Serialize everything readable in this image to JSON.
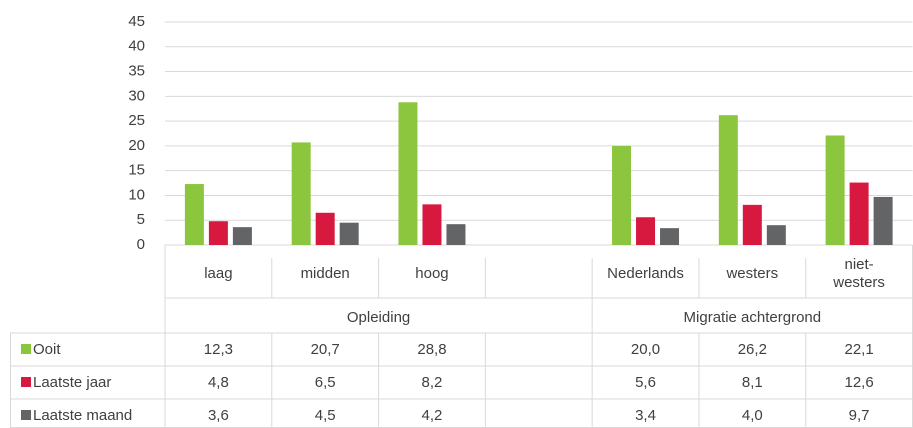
{
  "chart_data": {
    "type": "bar",
    "categories": [
      "laag",
      "midden",
      "hoog",
      null,
      "Nederlands",
      "westers",
      "niet-\nwesters"
    ],
    "groups": [
      "Opleiding",
      "Migratie achtergrond"
    ],
    "series": [
      {
        "name": "Ooit",
        "color": "#8cc63e",
        "values": [
          12.3,
          20.7,
          28.8,
          null,
          20.0,
          26.2,
          22.1
        ],
        "value_labels": [
          "12,3",
          "20,7",
          "28,8",
          null,
          "20,0",
          "26,2",
          "22,1"
        ]
      },
      {
        "name": "Laatste jaar",
        "color": "#d7193f",
        "values": [
          4.8,
          6.5,
          8.2,
          null,
          5.6,
          8.1,
          12.6
        ],
        "value_labels": [
          "4,8",
          "6,5",
          "8,2",
          null,
          "5,6",
          "8,1",
          "12,6"
        ]
      },
      {
        "name": "Laatste maand",
        "color": "#636466",
        "values": [
          3.6,
          4.5,
          4.2,
          null,
          3.4,
          4.0,
          9.7
        ],
        "value_labels": [
          "3,6",
          "4,5",
          "4,2",
          null,
          "3,4",
          "4,0",
          "9,7"
        ]
      }
    ],
    "ylim": [
      0,
      45
    ],
    "yticks": [
      0,
      5,
      10,
      15,
      20,
      25,
      30,
      35,
      40,
      45
    ],
    "grid": true
  }
}
